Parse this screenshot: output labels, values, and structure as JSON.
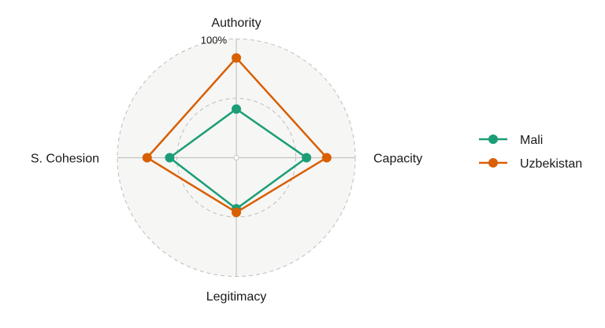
{
  "chart_data": {
    "type": "radar",
    "title": "",
    "axes": [
      "Authority",
      "Capacity",
      "Legitimacy",
      "S. Cohesion"
    ],
    "range": [
      0,
      100
    ],
    "unit": "%",
    "max_label": "100%",
    "gridlines": [
      50,
      100
    ],
    "grid": true,
    "legend_position": "right",
    "series": [
      {
        "name": "Mali",
        "color": "#1b9e77",
        "values": [
          41,
          59,
          43,
          56
        ]
      },
      {
        "name": "Uzbekistan",
        "color": "#d95f02",
        "values": [
          84,
          76,
          46,
          75
        ]
      }
    ]
  }
}
